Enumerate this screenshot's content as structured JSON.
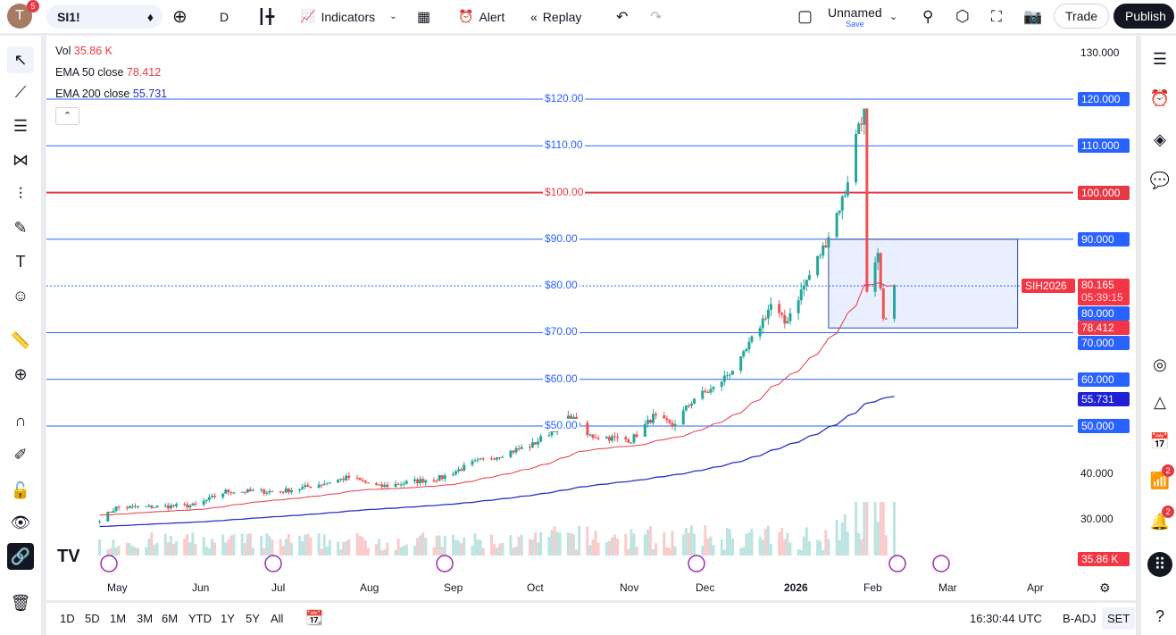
{
  "topbar": {
    "avatar_letter": "T",
    "notifications": "5",
    "symbol": "SI1!",
    "interval": "D",
    "indicators": "Indicators",
    "alert": "Alert",
    "replay": "Replay",
    "layout_name": "Unnamed",
    "layout_save": "Save",
    "trade": "Trade",
    "publish": "Publish"
  },
  "legend": {
    "vol_label": "Vol",
    "vol_value": "35.86 K",
    "ema50_label": "EMA 50 close",
    "ema50_value": "78.412",
    "ema200_label": "EMA 200 close",
    "ema200_value": "55.731"
  },
  "colors": {
    "up": "#26a69a",
    "down": "#ef5350",
    "ema50": "#e53945",
    "ema200": "#2a2ec2",
    "hline": "#2962ff",
    "accent": "#2962ff"
  },
  "hlines": [
    {
      "price": 120,
      "label": "$120.00",
      "axis": "120.000",
      "color": "#2962ff"
    },
    {
      "price": 110,
      "label": "$110.00",
      "axis": "110.000",
      "color": "#2962ff"
    },
    {
      "price": 100,
      "label": "$100.00",
      "axis": "100.000",
      "color": "#e53945"
    },
    {
      "price": 90,
      "label": "$90.00",
      "axis": "90.000",
      "color": "#2962ff"
    },
    {
      "price": 80,
      "label": "$80.00",
      "axis": "80.000",
      "color": "#2962ff"
    },
    {
      "price": 70,
      "label": "$70.00",
      "axis": "70.000",
      "color": "#2962ff"
    },
    {
      "price": 60,
      "label": "$60.00",
      "axis": "60.000",
      "color": "#2962ff"
    },
    {
      "price": 50,
      "label": "$50.00",
      "axis": "50.000",
      "color": "#2962ff"
    }
  ],
  "price_axis": {
    "ticks": [
      "130.000",
      "40.000",
      "30.000"
    ],
    "symbol_tag": "SIH2026",
    "last_price": "80.165",
    "countdown": "05:39:15",
    "ema50_tag": "78.412",
    "ema200_tag": "55.731",
    "vol_tag": "35.86 K"
  },
  "time_axis": [
    "May",
    "Jun",
    "Jul",
    "Aug",
    "Sep",
    "Oct",
    "Nov",
    "Dec",
    "2026",
    "Feb",
    "Mar",
    "Apr"
  ],
  "chart_data": {
    "type": "candlestick",
    "symbol": "SI1!",
    "interval": "D",
    "ylim": [
      20,
      130
    ],
    "close_keypoints": [
      [
        "2025-04-25",
        30
      ],
      [
        "2025-05-01",
        32.5
      ],
      [
        "2025-05-30",
        33
      ],
      [
        "2025-06-10",
        36
      ],
      [
        "2025-06-30",
        36
      ],
      [
        "2025-07-10",
        37
      ],
      [
        "2025-07-25",
        39
      ],
      [
        "2025-08-05",
        37
      ],
      [
        "2025-08-28",
        39
      ],
      [
        "2025-09-08",
        42
      ],
      [
        "2025-09-30",
        46
      ],
      [
        "2025-10-14",
        52
      ],
      [
        "2025-10-20",
        48
      ],
      [
        "2025-11-05",
        47
      ],
      [
        "2025-11-13",
        52
      ],
      [
        "2025-11-20",
        50
      ],
      [
        "2025-11-28",
        56
      ],
      [
        "2025-12-05",
        58
      ],
      [
        "2025-12-15",
        64
      ],
      [
        "2025-12-26",
        76
      ],
      [
        "2025-12-31",
        72
      ],
      [
        "2026-01-14",
        88
      ],
      [
        "2026-01-22",
        100
      ],
      [
        "2026-01-27",
        115
      ],
      [
        "2026-01-29",
        117
      ],
      [
        "2026-01-30",
        78
      ],
      [
        "2026-02-03",
        86
      ],
      [
        "2026-02-05",
        72
      ],
      [
        "2026-02-09",
        80.165
      ]
    ],
    "last": 80.165,
    "ema50": 78.412,
    "ema200": 55.731,
    "volume_last": "35.86K",
    "zone": {
      "from": "2026-01-16",
      "to": "2026-03-26",
      "high": 90,
      "low": 71
    }
  },
  "bottombar": {
    "ranges": [
      "1D",
      "5D",
      "1M",
      "3M",
      "6M",
      "YTD",
      "1Y",
      "5Y",
      "All"
    ],
    "clock": "16:30:44 UTC",
    "badj": "B-ADJ",
    "session": "SET"
  },
  "sidebar": {
    "alerts_count": "2",
    "notif_count": "2"
  }
}
